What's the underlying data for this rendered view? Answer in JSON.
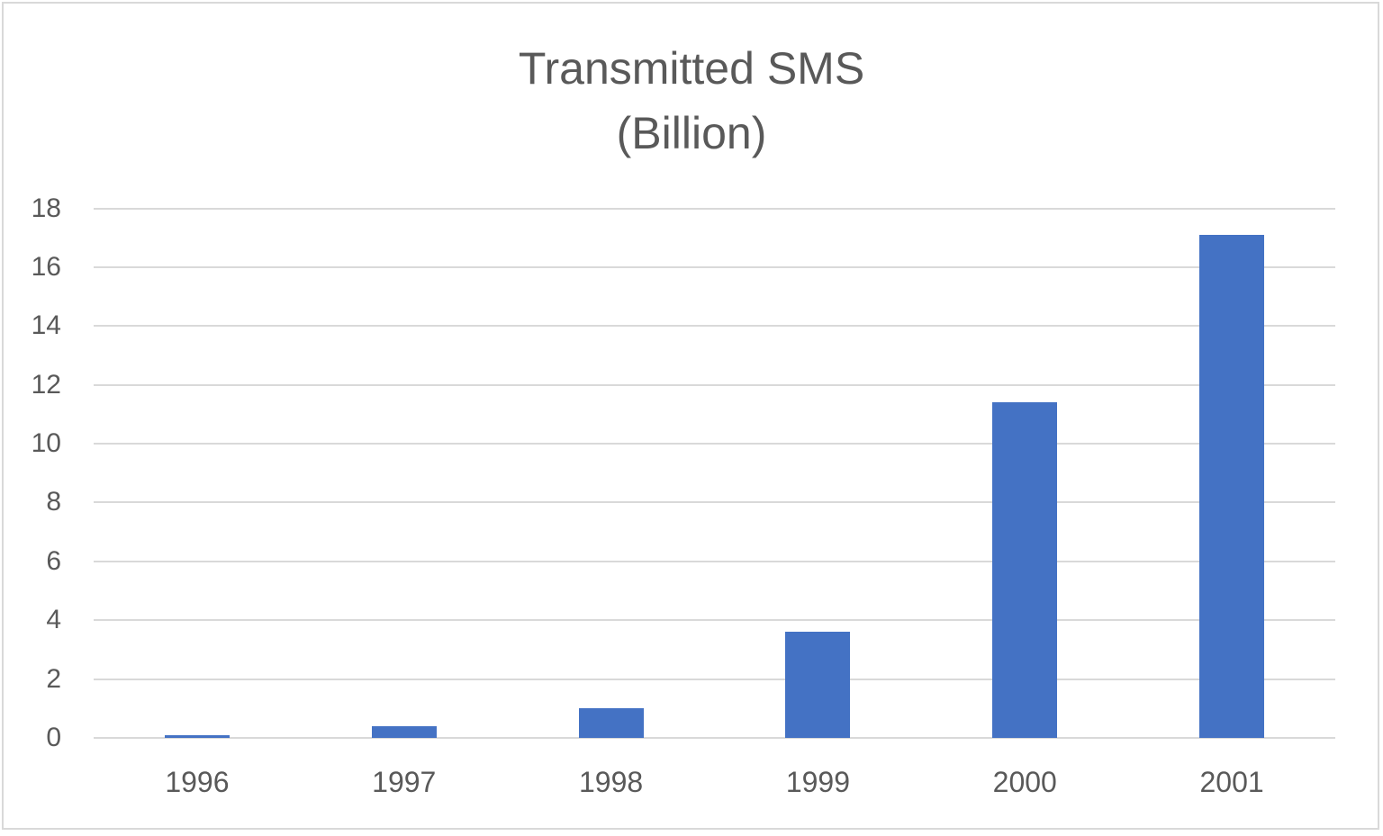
{
  "chart_data": {
    "type": "bar",
    "title": "Transmitted SMS (Billion)",
    "title_lines": [
      "Transmitted SMS",
      "(Billion)"
    ],
    "categories": [
      "1996",
      "1997",
      "1998",
      "1999",
      "2000",
      "2001"
    ],
    "values": [
      0.1,
      0.4,
      1.0,
      3.6,
      11.4,
      17.1
    ],
    "series": [
      {
        "name": "Transmitted SMS (Billion)",
        "values": [
          0.1,
          0.4,
          1.0,
          3.6,
          11.4,
          17.1
        ],
        "color": "#4472C4"
      }
    ],
    "xlabel": "",
    "ylabel": "",
    "ylim": [
      0,
      18
    ],
    "yticks": [
      0,
      2,
      4,
      6,
      8,
      10,
      12,
      14,
      16,
      18
    ],
    "ytick_labels": [
      "0",
      "2",
      "4",
      "6",
      "8",
      "10",
      "12",
      "14",
      "16",
      "18"
    ],
    "grid": true,
    "legend": null,
    "colors": {
      "bar": "#4472C4",
      "text": "#595959",
      "grid": "#d9d9d9",
      "border": "#d9d9d9",
      "background": "#ffffff"
    }
  }
}
